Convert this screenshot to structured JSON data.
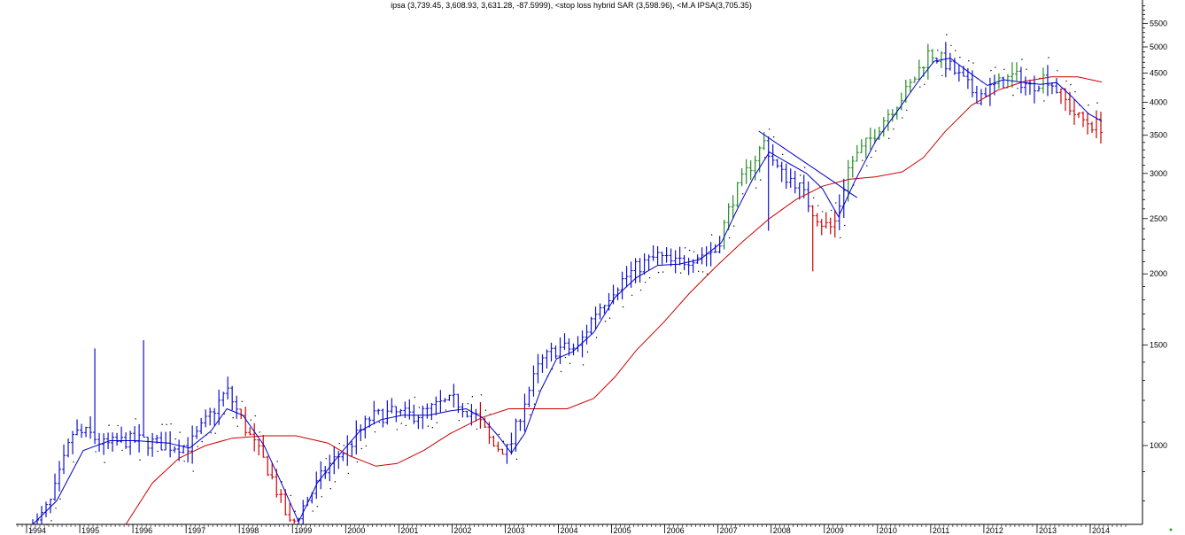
{
  "chart_data": {
    "type": "bar",
    "title": "ipsa (3,739.45, 3,608.93, 3,631.28, -87.5999), <stop loss hybrid SAR (3,598.96), <M.A IPSA(3,705.35)",
    "xlabel": "",
    "ylabel": "",
    "y_scale": "log",
    "ylim": [
      690,
      5900
    ],
    "xlim": [
      1993.5,
      2014.5
    ],
    "grid": false,
    "legend": "none",
    "colors": {
      "up": "#228b22",
      "down": "#cc0000",
      "neutral": "#1010cc",
      "ma_short": "#0000cc",
      "ma_long": "#cc0000",
      "sar": "#000000"
    },
    "y_ticks": [
      1000,
      1500,
      2000,
      2500,
      3000,
      3500,
      4000,
      4500,
      5000,
      5500
    ],
    "x_ticks": [
      "1994",
      "1995",
      "1996",
      "1997",
      "1998",
      "1999",
      "2000",
      "2001",
      "2002",
      "2003",
      "2004",
      "2005",
      "2006",
      "2007",
      "2008",
      "2009",
      "2010",
      "2011",
      "2012",
      "2013",
      "2014"
    ],
    "x_ticks_pos": [
      1994,
      1995,
      1996,
      1997,
      1998,
      1999,
      2000,
      2001,
      2002,
      2003,
      2004,
      2005,
      2006,
      2007,
      2008,
      2009,
      2010,
      2011,
      2012,
      2013,
      2014
    ],
    "anchors": [
      [
        1993.95,
        710
      ],
      [
        1994.3,
        800
      ],
      [
        1994.7,
        1050
      ],
      [
        1995.0,
        1050
      ],
      [
        1995.3,
        1000
      ],
      [
        1995.7,
        1020
      ],
      [
        1996.0,
        1020
      ],
      [
        1996.5,
        1000
      ],
      [
        1996.9,
        1000
      ],
      [
        1997.2,
        1100
      ],
      [
        1997.6,
        1250
      ],
      [
        1998.0,
        1050
      ],
      [
        1998.4,
        900
      ],
      [
        1998.8,
        720
      ],
      [
        1999.1,
        800
      ],
      [
        1999.5,
        920
      ],
      [
        1999.9,
        1000
      ],
      [
        2000.3,
        1120
      ],
      [
        2000.7,
        1140
      ],
      [
        2001.0,
        1130
      ],
      [
        2001.3,
        1140
      ],
      [
        2001.6,
        1180
      ],
      [
        2001.9,
        1200
      ],
      [
        2002.3,
        1120
      ],
      [
        2002.6,
        1000
      ],
      [
        2002.9,
        980
      ],
      [
        2003.2,
        1200
      ],
      [
        2003.5,
        1400
      ],
      [
        2003.8,
        1480
      ],
      [
        2004.2,
        1480
      ],
      [
        2004.5,
        1700
      ],
      [
        2004.9,
        1900
      ],
      [
        2005.3,
        2050
      ],
      [
        2005.7,
        2150
      ],
      [
        2006.0,
        2080
      ],
      [
        2006.4,
        2150
      ],
      [
        2006.8,
        2200
      ],
      [
        2007.1,
        2700
      ],
      [
        2007.4,
        3050
      ],
      [
        2007.7,
        3400
      ],
      [
        2008.0,
        3000
      ],
      [
        2008.3,
        2900
      ],
      [
        2008.6,
        2600
      ],
      [
        2008.8,
        2450
      ],
      [
        2009.0,
        2400
      ],
      [
        2009.3,
        3100
      ],
      [
        2009.7,
        3450
      ],
      [
        2010.0,
        3800
      ],
      [
        2010.4,
        4200
      ],
      [
        2010.8,
        4900
      ],
      [
        2011.1,
        4700
      ],
      [
        2011.4,
        4400
      ],
      [
        2011.7,
        4100
      ],
      [
        2012.0,
        4250
      ],
      [
        2012.4,
        4450
      ],
      [
        2012.7,
        4250
      ],
      [
        2013.0,
        4450
      ],
      [
        2013.3,
        4100
      ],
      [
        2013.6,
        3750
      ],
      [
        2013.9,
        3650
      ],
      [
        2014.05,
        3631
      ]
    ],
    "spikes": [
      [
        1995.1,
        1480
      ],
      [
        1996.05,
        1530
      ],
      [
        2008.65,
        2020
      ],
      [
        2007.8,
        2380
      ]
    ],
    "ma_short": [
      [
        1993.95,
        680
      ],
      [
        1994.4,
        800
      ],
      [
        1994.9,
        980
      ],
      [
        1995.4,
        1020
      ],
      [
        1995.9,
        1020
      ],
      [
        1996.5,
        1010
      ],
      [
        1996.9,
        990
      ],
      [
        1997.3,
        1060
      ],
      [
        1997.6,
        1160
      ],
      [
        1997.9,
        1130
      ],
      [
        1998.3,
        1000
      ],
      [
        1998.6,
        870
      ],
      [
        1998.95,
        735
      ],
      [
        1999.3,
        860
      ],
      [
        1999.7,
        960
      ],
      [
        2000.1,
        1060
      ],
      [
        2000.5,
        1110
      ],
      [
        2000.9,
        1130
      ],
      [
        2001.4,
        1130
      ],
      [
        2001.8,
        1150
      ],
      [
        2002.1,
        1160
      ],
      [
        2002.4,
        1120
      ],
      [
        2002.7,
        1040
      ],
      [
        2002.95,
        970
      ],
      [
        2003.2,
        1050
      ],
      [
        2003.5,
        1250
      ],
      [
        2003.8,
        1420
      ],
      [
        2004.1,
        1460
      ],
      [
        2004.5,
        1580
      ],
      [
        2004.9,
        1820
      ],
      [
        2005.3,
        1970
      ],
      [
        2005.7,
        2070
      ],
      [
        2006.1,
        2080
      ],
      [
        2006.5,
        2120
      ],
      [
        2006.9,
        2270
      ],
      [
        2007.2,
        2600
      ],
      [
        2007.5,
        2950
      ],
      [
        2007.8,
        3270
      ],
      [
        2008.1,
        3150
      ],
      [
        2008.5,
        3000
      ],
      [
        2008.8,
        2820
      ],
      [
        2009.1,
        2520
      ],
      [
        2009.4,
        2900
      ],
      [
        2009.8,
        3420
      ],
      [
        2010.2,
        3850
      ],
      [
        2010.6,
        4350
      ],
      [
        2010.9,
        4720
      ],
      [
        2011.2,
        4780
      ],
      [
        2011.6,
        4480
      ],
      [
        2011.9,
        4280
      ],
      [
        2012.2,
        4380
      ],
      [
        2012.6,
        4330
      ],
      [
        2012.9,
        4300
      ],
      [
        2013.2,
        4330
      ],
      [
        2013.5,
        4080
      ],
      [
        2013.8,
        3820
      ],
      [
        2014.05,
        3705
      ]
    ],
    "ma_long": [
      [
        1995.7,
        690
      ],
      [
        1996.2,
        860
      ],
      [
        1996.7,
        950
      ],
      [
        1997.2,
        1000
      ],
      [
        1997.7,
        1030
      ],
      [
        1998.3,
        1040
      ],
      [
        1998.9,
        1040
      ],
      [
        1999.5,
        1010
      ],
      [
        1999.9,
        960
      ],
      [
        2000.4,
        920
      ],
      [
        2000.8,
        930
      ],
      [
        2001.3,
        980
      ],
      [
        2001.8,
        1050
      ],
      [
        2002.4,
        1120
      ],
      [
        2002.9,
        1160
      ],
      [
        2003.5,
        1160
      ],
      [
        2004.0,
        1160
      ],
      [
        2004.5,
        1210
      ],
      [
        2004.9,
        1320
      ],
      [
        2005.3,
        1470
      ],
      [
        2005.8,
        1640
      ],
      [
        2006.3,
        1850
      ],
      [
        2006.8,
        2060
      ],
      [
        2007.3,
        2280
      ],
      [
        2007.8,
        2500
      ],
      [
        2008.3,
        2700
      ],
      [
        2008.8,
        2850
      ],
      [
        2009.3,
        2930
      ],
      [
        2009.8,
        2960
      ],
      [
        2010.3,
        3020
      ],
      [
        2010.7,
        3200
      ],
      [
        2011.1,
        3550
      ],
      [
        2011.6,
        3950
      ],
      [
        2012.1,
        4200
      ],
      [
        2012.6,
        4350
      ],
      [
        2013.1,
        4430
      ],
      [
        2013.6,
        4430
      ],
      [
        2014.05,
        4340
      ]
    ],
    "trendline": [
      [
        2007.6,
        3560
      ],
      [
        2009.45,
        2720
      ]
    ]
  }
}
